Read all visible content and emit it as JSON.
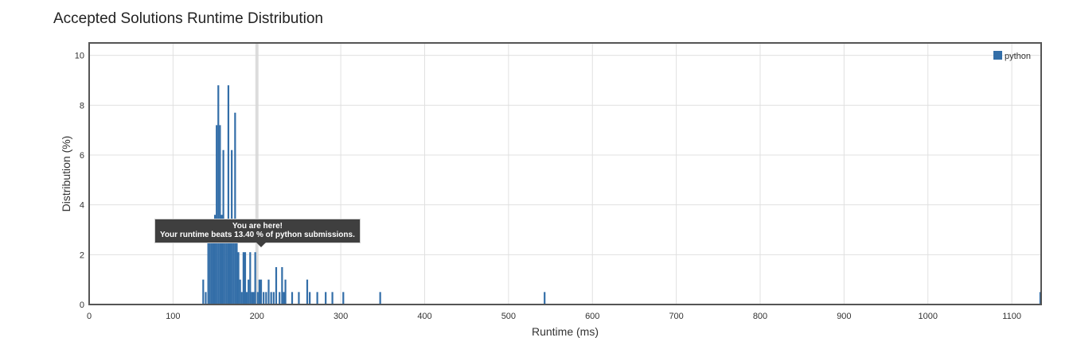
{
  "page": {
    "title": "Accepted Solutions Runtime Distribution"
  },
  "tooltip": {
    "line1": "You are here!",
    "line2": "Your runtime beats 13.40 % of python submissions."
  },
  "chart_data": {
    "type": "bar",
    "title": "Accepted Solutions Runtime Distribution",
    "xlabel": "Runtime (ms)",
    "ylabel": "Distribution (%)",
    "xlim": [
      0,
      1135
    ],
    "ylim": [
      0,
      10.5
    ],
    "x_ticks": [
      0,
      100,
      200,
      300,
      400,
      500,
      600,
      700,
      800,
      900,
      1000,
      1100
    ],
    "y_ticks": [
      0,
      2,
      4,
      6,
      8,
      10
    ],
    "grid": true,
    "legend_position": "top-right",
    "highlight_x": 200,
    "series": [
      {
        "name": "python",
        "color": "#336ea8",
        "points": [
          [
            136,
            1.0
          ],
          [
            139,
            0.5
          ],
          [
            142,
            3.1
          ],
          [
            144,
            3.1
          ],
          [
            146,
            3.1
          ],
          [
            148,
            2.6
          ],
          [
            150,
            3.6
          ],
          [
            152,
            7.2
          ],
          [
            154,
            8.8
          ],
          [
            156,
            7.2
          ],
          [
            158,
            3.6
          ],
          [
            160,
            6.2
          ],
          [
            162,
            2.6
          ],
          [
            164,
            2.6
          ],
          [
            166,
            8.8
          ],
          [
            168,
            3.1
          ],
          [
            170,
            6.2
          ],
          [
            172,
            2.6
          ],
          [
            174,
            7.7
          ],
          [
            176,
            3.1
          ],
          [
            178,
            2.1
          ],
          [
            180,
            1.0
          ],
          [
            182,
            0.5
          ],
          [
            184,
            2.1
          ],
          [
            186,
            2.1
          ],
          [
            188,
            0.5
          ],
          [
            190,
            1.0
          ],
          [
            192,
            2.1
          ],
          [
            194,
            0.5
          ],
          [
            196,
            0.5
          ],
          [
            198,
            2.1
          ],
          [
            201,
            0.5
          ],
          [
            203,
            1.0
          ],
          [
            205,
            1.0
          ],
          [
            208,
            0.5
          ],
          [
            211,
            0.5
          ],
          [
            214,
            1.0
          ],
          [
            217,
            0.5
          ],
          [
            220,
            0.5
          ],
          [
            223,
            1.5
          ],
          [
            227,
            0.5
          ],
          [
            230,
            1.5
          ],
          [
            232,
            0.5
          ],
          [
            234,
            1.0
          ],
          [
            242,
            0.5
          ],
          [
            250,
            0.5
          ],
          [
            260,
            1.0
          ],
          [
            263,
            0.5
          ],
          [
            272,
            0.5
          ],
          [
            282,
            0.5
          ],
          [
            290,
            0.5
          ],
          [
            303,
            0.5
          ],
          [
            347,
            0.5
          ],
          [
            543,
            0.5
          ],
          [
            1134,
            0.5
          ]
        ]
      }
    ]
  }
}
